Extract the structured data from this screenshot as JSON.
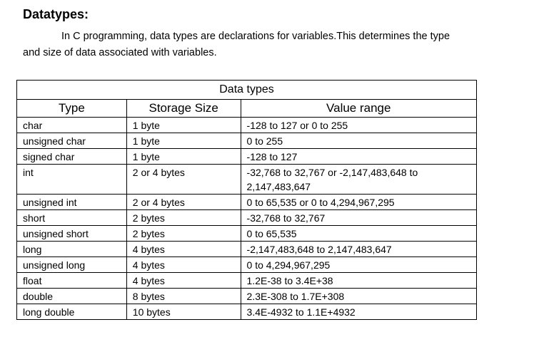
{
  "doc": {
    "title": "Datatypes:",
    "intro_line1": "In C programming, data types are declarations for variables.This determines the type",
    "intro_line2": "and size of data associated with variables."
  },
  "table": {
    "caption": "Data types",
    "headers": [
      "Type",
      "Storage Size",
      "Value range"
    ],
    "rows": [
      [
        "char",
        "1 byte",
        "-128 to 127 or 0 to 255"
      ],
      [
        "unsigned char",
        "1 byte",
        "0 to 255"
      ],
      [
        "signed char",
        "1 byte",
        "-128 to 127"
      ],
      [
        "int",
        "2 or 4 bytes",
        "-32,768 to 32,767 or -2,147,483,648 to 2,147,483,647"
      ],
      [
        "unsigned int",
        "2 or 4 bytes",
        "0 to 65,535 or 0 to 4,294,967,295"
      ],
      [
        "short",
        "2 bytes",
        "-32,768 to 32,767"
      ],
      [
        "unsigned short",
        "2 bytes",
        "0 to 65,535"
      ],
      [
        "long",
        "4 bytes",
        "-2,147,483,648 to 2,147,483,647"
      ],
      [
        "unsigned long",
        "4 bytes",
        "0 to 4,294,967,295"
      ],
      [
        "float",
        "4 bytes",
        "1.2E-38 to 3.4E+38"
      ],
      [
        "double",
        "8 bytes",
        "2.3E-308 to 1.7E+308"
      ],
      [
        "long double",
        "10 bytes",
        "3.4E-4932 to 1.1E+4932"
      ]
    ]
  }
}
